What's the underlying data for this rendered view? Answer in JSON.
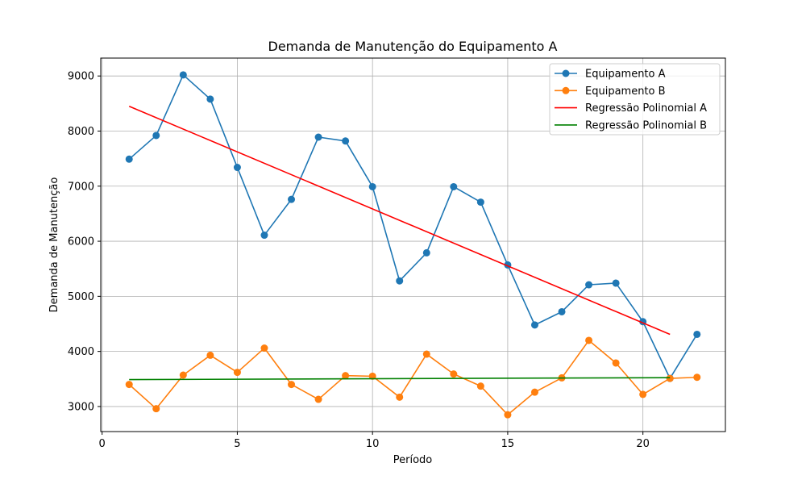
{
  "chart_data": {
    "type": "line",
    "title": "Demanda de Manutenção do Equipamento A",
    "xlabel": "Período",
    "ylabel": "Demanda de Manutenção",
    "xlim": [
      -0.05,
      23.05
    ],
    "ylim": [
      2545,
      9325
    ],
    "xticks": [
      0,
      5,
      10,
      15,
      20
    ],
    "yticks": [
      3000,
      4000,
      5000,
      6000,
      7000,
      8000,
      9000
    ],
    "grid": true,
    "legend_position": "top-right",
    "series": [
      {
        "name": "Equipamento A",
        "color": "#1f77b4",
        "marker": "circle",
        "x": [
          1,
          2,
          3,
          4,
          5,
          6,
          7,
          8,
          9,
          10,
          11,
          12,
          13,
          14,
          15,
          16,
          17,
          18,
          19,
          20,
          21,
          22
        ],
        "y": [
          7490,
          7920,
          9020,
          8580,
          7340,
          6110,
          6760,
          7890,
          7820,
          6990,
          5280,
          5790,
          6990,
          6710,
          5570,
          4480,
          4720,
          5210,
          5240,
          4540,
          3510,
          4310
        ]
      },
      {
        "name": "Equipamento B",
        "color": "#ff7f0e",
        "marker": "circle",
        "x": [
          1,
          2,
          3,
          4,
          5,
          6,
          7,
          8,
          9,
          10,
          11,
          12,
          13,
          14,
          15,
          16,
          17,
          18,
          19,
          20,
          21,
          22
        ],
        "y": [
          3400,
          2960,
          3570,
          3930,
          3620,
          4060,
          3400,
          3130,
          3560,
          3550,
          3170,
          3950,
          3590,
          3370,
          2850,
          3260,
          3520,
          4200,
          3790,
          3220,
          3510,
          3530
        ]
      },
      {
        "name": "Regressão Polinomial A",
        "color": "#ff0000",
        "marker": "none",
        "x": [
          1,
          21
        ],
        "y": [
          8450,
          4310
        ]
      },
      {
        "name": "Regressão Polinomial B",
        "color": "#008000",
        "marker": "none",
        "x": [
          1,
          21
        ],
        "y": [
          3488,
          3524
        ]
      }
    ]
  }
}
